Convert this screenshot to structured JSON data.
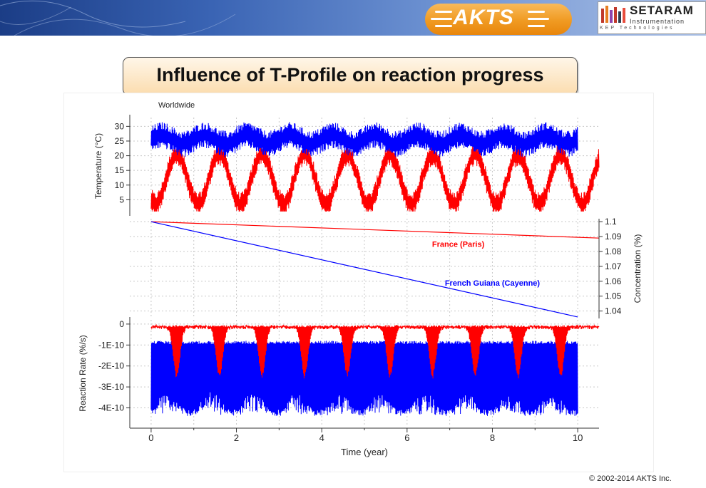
{
  "header": {
    "akts_logo_text": "AKTS",
    "setaram_name": "SETARAM",
    "setaram_sub": "Instrumentation",
    "setaram_tagline": "KEP Technologies"
  },
  "title": "Influence of T-Profile on reaction progress",
  "copyright": "© 2002-2014 AKTS Inc.",
  "colors": {
    "paris": "#ff0000",
    "cayenne": "#0000ff",
    "banner": "#2a4f9c",
    "title_fill": "#fbdcae"
  },
  "chart_data": [
    {
      "type": "line",
      "title": "Worldwide",
      "ylabel": "Temperature (°C)",
      "xlabel": "",
      "xlim": [
        -0.5,
        10.5
      ],
      "ylim": [
        0,
        33
      ],
      "yticks": [
        5,
        10,
        15,
        20,
        25,
        30
      ],
      "grid": true,
      "series": [
        {
          "name": "France (Paris)",
          "color": "#ff0000",
          "x_range": [
            0,
            10.5
          ],
          "mean": 12,
          "amplitude": 8.5,
          "daily_noise": 4,
          "x_peaks": [
            0.6,
            1.6,
            2.6,
            3.6,
            4.6,
            5.6,
            6.6,
            7.6,
            8.6,
            9.6
          ]
        },
        {
          "name": "French Guiana (Cayenne)",
          "color": "#0000ff",
          "x_range": [
            0,
            10
          ],
          "mean": 25.5,
          "amplitude": 1.5,
          "daily_noise": 4.5
        }
      ]
    },
    {
      "type": "line",
      "ylabel": "Concentration (%)",
      "xlabel": "",
      "xlim": [
        -0.5,
        10.5
      ],
      "ylim": [
        1.035,
        1.102
      ],
      "yticks": [
        1.04,
        1.05,
        1.06,
        1.07,
        1.08,
        1.09,
        1.1
      ],
      "axis_side": "right",
      "grid": true,
      "series": [
        {
          "name": "France (Paris)",
          "color": "#ff0000",
          "x": [
            0,
            10.5
          ],
          "y": [
            1.1,
            1.089
          ]
        },
        {
          "name": "French Guiana (Cayenne)",
          "color": "#0000ff",
          "x": [
            0,
            10
          ],
          "y": [
            1.1,
            1.036
          ]
        }
      ],
      "annotations": [
        {
          "text": "France (Paris)",
          "x": 7.2,
          "y": 1.085,
          "color": "#ff0000"
        },
        {
          "text": "French Guiana (Cayenne)",
          "x": 8.0,
          "y": 1.059,
          "color": "#0000ff"
        }
      ]
    },
    {
      "type": "line",
      "ylabel": "Reaction Rate (%/s)",
      "xlabel": "Time (year)",
      "xlim": [
        -0.5,
        10.5
      ],
      "ylim": [
        -4.9e-10,
        2e-11
      ],
      "xticks": [
        0,
        2,
        4,
        6,
        8,
        10
      ],
      "ytick_labels": [
        "0",
        "-1E-10",
        "-2E-10",
        "-3E-10",
        "-4E-10"
      ],
      "yticks": [
        0,
        -1e-10,
        -2e-10,
        -3e-10,
        -4e-10
      ],
      "grid": true,
      "series": [
        {
          "name": "France (Paris)",
          "color": "#ff0000",
          "x_range": [
            0,
            10.5
          ],
          "baseline": -1e-11,
          "dip_min": -2.3e-10,
          "x_dips": [
            0.6,
            1.6,
            2.6,
            3.6,
            4.6,
            5.6,
            6.6,
            7.6,
            8.6,
            9.6
          ]
        },
        {
          "name": "French Guiana (Cayenne)",
          "color": "#0000ff",
          "x_range": [
            0,
            10
          ],
          "upper": -8e-11,
          "lower": -4.4e-10
        }
      ]
    }
  ]
}
